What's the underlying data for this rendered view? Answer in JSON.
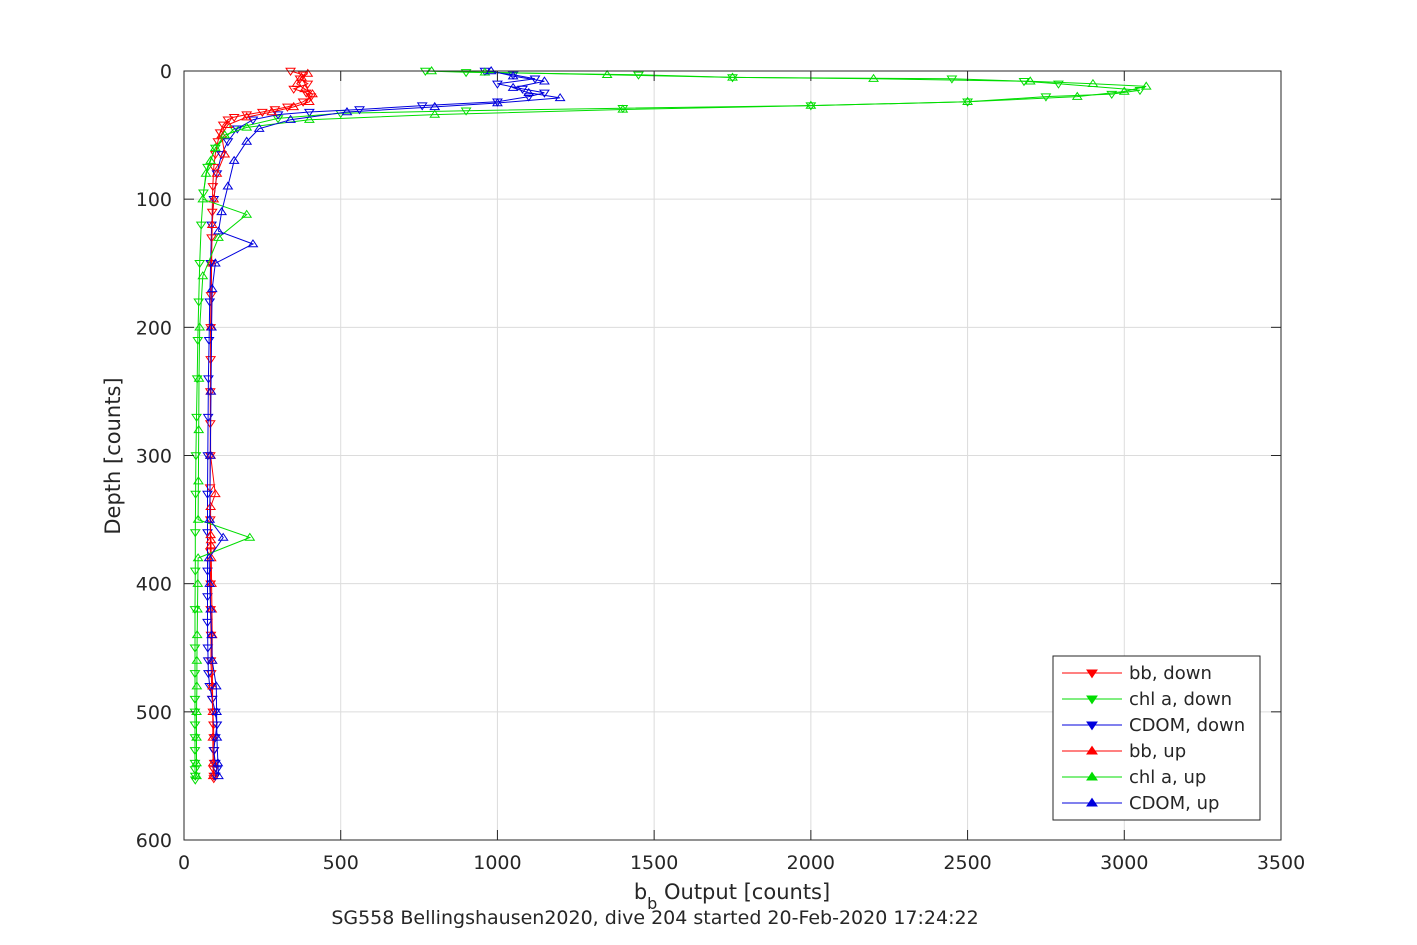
{
  "chart_data": {
    "type": "line",
    "title": "",
    "xlabel": "b_b Output [counts]",
    "xlabel_main": "b",
    "xlabel_sub": "b",
    "xlabel_rest": " Output [counts]",
    "ylabel": "Depth [counts]",
    "footer": "SG558 Bellingshausen2020, dive 204 started 20-Feb-2020 17:24:22",
    "xlim": [
      0,
      3500
    ],
    "ylim": [
      0,
      600
    ],
    "y_reversed": true,
    "xticks": [
      0,
      500,
      1000,
      1500,
      2000,
      2500,
      3000,
      3500
    ],
    "yticks": [
      0,
      100,
      200,
      300,
      400,
      500,
      600
    ],
    "grid": true,
    "legend_position": "bottom-right",
    "series": [
      {
        "name": "bb, down",
        "color": "#ff0000",
        "marker": "triangle-down",
        "x": [
          340,
          380,
          370,
          395,
          350,
          390,
          405,
          380,
          330,
          290,
          250,
          200,
          160,
          140,
          125,
          115,
          108,
          100,
          95,
          92,
          90,
          88,
          87,
          86,
          85,
          85,
          84,
          84,
          84,
          83,
          84,
          84,
          85,
          85,
          86,
          86,
          87,
          88,
          90,
          92,
          94,
          95,
          96,
          96,
          95,
          95,
          95
        ],
        "y": [
          0,
          3,
          6,
          10,
          14,
          17,
          20,
          24,
          28,
          30,
          32,
          34,
          36,
          38,
          42,
          48,
          55,
          65,
          75,
          90,
          110,
          130,
          150,
          175,
          200,
          225,
          250,
          275,
          300,
          325,
          350,
          375,
          400,
          420,
          440,
          460,
          470,
          480,
          490,
          500,
          510,
          520,
          530,
          540,
          545,
          550,
          552
        ]
      },
      {
        "name": "chl a, down",
        "color": "#00dd00",
        "marker": "triangle-down",
        "x": [
          770,
          900,
          1450,
          1750,
          2450,
          2680,
          2790,
          3050,
          2960,
          2750,
          2500,
          2000,
          1400,
          900,
          500,
          300,
          160,
          100,
          75,
          62,
          55,
          50,
          47,
          44,
          42,
          40,
          38,
          37,
          36,
          36,
          35,
          35,
          35,
          35,
          35,
          35,
          35,
          35,
          35,
          35,
          36,
          36
        ],
        "y": [
          0,
          1,
          3,
          5,
          6,
          8,
          10,
          15,
          18,
          20,
          24,
          27,
          29,
          31,
          33,
          37,
          45,
          60,
          75,
          95,
          120,
          150,
          180,
          210,
          240,
          270,
          300,
          330,
          360,
          390,
          420,
          450,
          470,
          490,
          500,
          510,
          520,
          530,
          540,
          545,
          550,
          553
        ]
      },
      {
        "name": "CDOM, down",
        "color": "#0000dd",
        "marker": "triangle-down",
        "x": [
          960,
          1050,
          1120,
          1000,
          1080,
          1150,
          1100,
          1000,
          760,
          560,
          400,
          300,
          220,
          170,
          140,
          120,
          105,
          95,
          88,
          85,
          82,
          80,
          78,
          77,
          76,
          75,
          75,
          75,
          75,
          75,
          76,
          77,
          78,
          82,
          90,
          100,
          105,
          100,
          95,
          100,
          105,
          100
        ],
        "y": [
          0,
          3,
          6,
          10,
          14,
          17,
          20,
          24,
          27,
          30,
          32,
          34,
          38,
          45,
          55,
          65,
          80,
          100,
          120,
          150,
          180,
          210,
          240,
          270,
          300,
          330,
          360,
          390,
          410,
          430,
          450,
          460,
          470,
          480,
          490,
          500,
          510,
          520,
          530,
          540,
          545,
          550
        ]
      },
      {
        "name": "bb, up",
        "color": "#ff0000",
        "marker": "triangle-up",
        "x": [
          93,
          93,
          92,
          92,
          91,
          90,
          90,
          89,
          88,
          87,
          86,
          86,
          85,
          85,
          100,
          85,
          85,
          86,
          88,
          90,
          95,
          105,
          130,
          120,
          140,
          200,
          280,
          350,
          400,
          410,
          385,
          360,
          375,
          395
        ],
        "y": [
          550,
          540,
          520,
          500,
          480,
          460,
          440,
          420,
          400,
          380,
          370,
          366,
          362,
          340,
          330,
          300,
          250,
          200,
          150,
          120,
          100,
          80,
          65,
          50,
          42,
          36,
          32,
          28,
          24,
          18,
          14,
          10,
          5,
          2
        ]
      },
      {
        "name": "chl a, up",
        "color": "#00dd00",
        "marker": "triangle-up",
        "x": [
          40,
          40,
          40,
          40,
          41,
          41,
          42,
          43,
          44,
          45,
          210,
          45,
          46,
          47,
          48,
          50,
          60,
          110,
          200,
          60,
          70,
          85,
          100,
          130,
          200,
          400,
          800,
          1400,
          2000,
          2500,
          2850,
          3000,
          3070,
          2900,
          2700,
          2200,
          1750,
          1350,
          960,
          790
        ],
        "y": [
          550,
          540,
          520,
          500,
          480,
          460,
          440,
          420,
          400,
          380,
          364,
          350,
          320,
          280,
          240,
          200,
          160,
          130,
          112,
          100,
          80,
          70,
          60,
          50,
          44,
          38,
          34,
          30,
          27,
          24,
          20,
          16,
          12,
          10,
          8,
          6,
          5,
          3,
          1,
          0
        ]
      },
      {
        "name": "CDOM, up",
        "color": "#0000dd",
        "marker": "triangle-up",
        "x": [
          110,
          108,
          105,
          104,
          103,
          90,
          88,
          85,
          82,
          80,
          125,
          82,
          84,
          86,
          88,
          90,
          100,
          220,
          110,
          120,
          140,
          160,
          200,
          240,
          340,
          520,
          800,
          1000,
          1200,
          1100,
          1050,
          1150,
          1050,
          980
        ],
        "y": [
          550,
          540,
          520,
          500,
          480,
          460,
          440,
          420,
          400,
          380,
          364,
          350,
          300,
          250,
          200,
          170,
          150,
          135,
          125,
          110,
          90,
          70,
          55,
          45,
          38,
          32,
          28,
          25,
          21,
          17,
          13,
          8,
          4,
          0
        ]
      }
    ]
  }
}
